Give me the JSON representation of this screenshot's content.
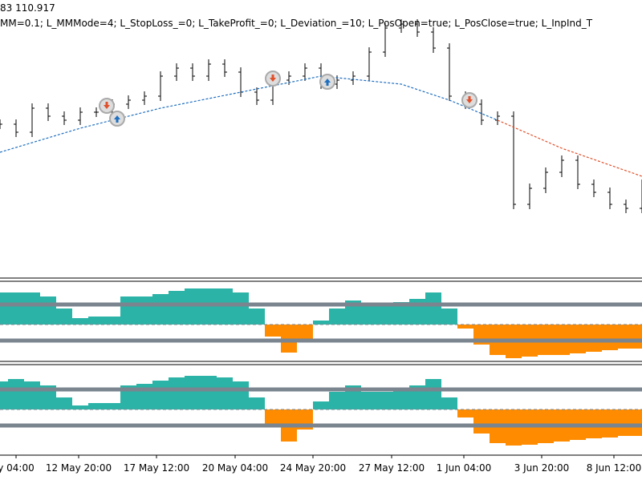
{
  "header": {
    "price": "83 110.917",
    "params": "MM=0.1; L_MMMode=4; L_StopLoss_=0; L_TakeProfit_=0; L_Deviation_=10; L_PosOpen=true; L_PosClose=true; L_InpInd_T"
  },
  "chart_data": [
    {
      "type": "ohlc",
      "color": "#000000",
      "ylim": [
        0,
        350
      ],
      "values": [
        195,
        185,
        215,
        205,
        200,
        210,
        210,
        220,
        225,
        230,
        255,
        265,
        255,
        270,
        260,
        235,
        225,
        250,
        255,
        265,
        245,
        250,
        255,
        285,
        315,
        320,
        310,
        290,
        230,
        220,
        200,
        205,
        95,
        115,
        135,
        150,
        120,
        110,
        95,
        90,
        120
      ],
      "ma": [
        {
          "color": "#1f6fbf",
          "x": [
            0,
            5,
            10,
            15,
            20,
            25,
            28,
            31
          ],
          "values": [
            160,
            190,
            215,
            235,
            255,
            245,
            225,
            200
          ]
        },
        {
          "color": "#e0502a",
          "x": [
            31,
            35,
            40
          ],
          "values": [
            200,
            165,
            130
          ]
        }
      ],
      "xticks": [
        {
          "value": 1,
          "label": "y 04:00"
        },
        {
          "value": 4.9,
          "label": "12 May 20:00"
        },
        {
          "value": 9.75,
          "label": "17 May 12:00"
        },
        {
          "value": 14.65,
          "label": "20 May 04:00"
        },
        {
          "value": 19.5,
          "label": "24 May 20:00"
        },
        {
          "value": 24.4,
          "label": "27 May 12:00"
        },
        {
          "value": 28.9,
          "label": "1 Jun 04:00"
        },
        {
          "value": 33.75,
          "label": "3 Jun 20:00"
        },
        {
          "value": 38.25,
          "label": "8 Jun 12:00"
        }
      ]
    },
    {
      "type": "oscillator",
      "ylim": [
        -55,
        55
      ],
      "levels": [
        25,
        -20
      ],
      "colors": [
        "#2ab3a6",
        "#ff8c00"
      ],
      "values": [
        40,
        40,
        40,
        35,
        20,
        8,
        10,
        10,
        35,
        35,
        38,
        42,
        45,
        45,
        45,
        40,
        20,
        -15,
        -35,
        -20,
        5,
        20,
        30,
        25,
        25,
        28,
        32,
        40,
        20,
        -5,
        -25,
        -38,
        -42,
        -40,
        -38,
        -38,
        -36,
        -34,
        -32,
        -30,
        -30
      ]
    },
    {
      "type": "oscillator",
      "ylim": [
        -55,
        55
      ],
      "levels": [
        25,
        -20
      ],
      "colors": [
        "#2ab3a6",
        "#ff8c00"
      ],
      "values": [
        35,
        38,
        35,
        30,
        15,
        5,
        8,
        8,
        30,
        32,
        36,
        40,
        42,
        42,
        40,
        35,
        15,
        -20,
        -40,
        -25,
        10,
        22,
        30,
        22,
        22,
        25,
        30,
        38,
        15,
        -10,
        -30,
        -42,
        -45,
        -44,
        -42,
        -40,
        -38,
        -36,
        -35,
        -33,
        -33
      ]
    }
  ]
}
